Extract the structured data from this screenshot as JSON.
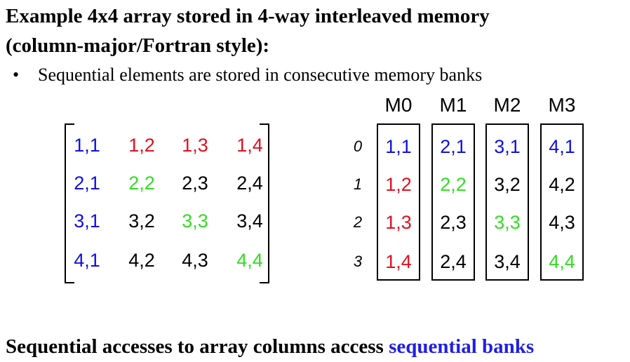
{
  "title_line1": "Example 4x4 array stored in 4-way interleaved memory",
  "title_line2": "(column-major/Fortran style):",
  "bullet_text": "Sequential elements are stored in consecutive memory banks",
  "matrix": [
    [
      {
        "t": "1,1",
        "c": "#1010e0"
      },
      {
        "t": "1,2",
        "c": "#e01020"
      },
      {
        "t": "1,3",
        "c": "#e01020"
      },
      {
        "t": "1,4",
        "c": "#e01020"
      }
    ],
    [
      {
        "t": "2,1",
        "c": "#1010e0"
      },
      {
        "t": "2,2",
        "c": "#33dd22"
      },
      {
        "t": "2,3",
        "c": "#000000"
      },
      {
        "t": "2,4",
        "c": "#000000"
      }
    ],
    [
      {
        "t": "3,1",
        "c": "#1010e0"
      },
      {
        "t": "3,2",
        "c": "#000000"
      },
      {
        "t": "3,3",
        "c": "#33dd22"
      },
      {
        "t": "3,4",
        "c": "#000000"
      }
    ],
    [
      {
        "t": "4,1",
        "c": "#1010e0"
      },
      {
        "t": "4,2",
        "c": "#000000"
      },
      {
        "t": "4,3",
        "c": "#000000"
      },
      {
        "t": "4,4",
        "c": "#33dd22"
      }
    ]
  ],
  "banks": [
    {
      "name": "M0",
      "cells": [
        {
          "t": "1,1",
          "c": "#1010e0"
        },
        {
          "t": "1,2",
          "c": "#e01020"
        },
        {
          "t": "1,3",
          "c": "#e01020"
        },
        {
          "t": "1,4",
          "c": "#e01020"
        }
      ]
    },
    {
      "name": "M1",
      "cells": [
        {
          "t": "2,1",
          "c": "#1010e0"
        },
        {
          "t": "2,2",
          "c": "#33dd22"
        },
        {
          "t": "2,3",
          "c": "#000000"
        },
        {
          "t": "2,4",
          "c": "#000000"
        }
      ]
    },
    {
      "name": "M2",
      "cells": [
        {
          "t": "3,1",
          "c": "#1010e0"
        },
        {
          "t": "3,2",
          "c": "#000000"
        },
        {
          "t": "3,3",
          "c": "#33dd22"
        },
        {
          "t": "3,4",
          "c": "#000000"
        }
      ]
    },
    {
      "name": "M3",
      "cells": [
        {
          "t": "4,1",
          "c": "#1010e0"
        },
        {
          "t": "4,2",
          "c": "#000000"
        },
        {
          "t": "4,3",
          "c": "#000000"
        },
        {
          "t": "4,4",
          "c": "#33dd22"
        }
      ]
    }
  ],
  "row_indices": [
    "0",
    "1",
    "2",
    "3"
  ],
  "footer_text": "Sequential accesses to array columns access ",
  "footer_highlight": "sequential banks",
  "colors": {
    "blue": "#1010e0",
    "red": "#e01020",
    "green": "#33dd22",
    "footer_highlight": "#1f1fe6"
  }
}
